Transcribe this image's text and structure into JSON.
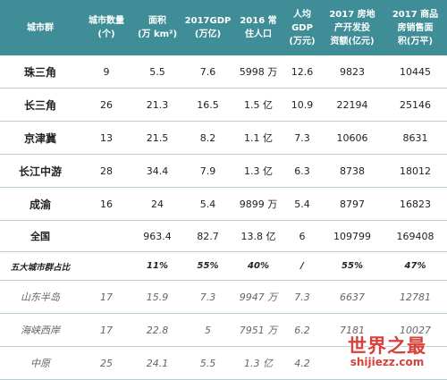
{
  "header": {
    "col1": [
      "城市群"
    ],
    "col2": [
      "城市数量",
      "(个)"
    ],
    "col3": [
      "面积",
      "(万 km²)"
    ],
    "col4": [
      "2017GDP",
      "(万亿)"
    ],
    "col5": [
      "2016 常",
      "住人口"
    ],
    "col6": [
      "人均",
      "GDP",
      "(万元)"
    ],
    "col7": [
      "2017 房地",
      "产开发投",
      "资额(亿元)"
    ],
    "col8": [
      "2017 商品",
      "房销售面",
      "积(万平)"
    ]
  },
  "rows": [
    {
      "name": "珠三角",
      "count": "9",
      "area": "5.5",
      "gdp": "7.6",
      "pop": "5998 万",
      "per": "12.6",
      "invest": "9823",
      "sales": "10445"
    },
    {
      "name": "长三角",
      "count": "26",
      "area": "21.3",
      "gdp": "16.5",
      "pop": "1.5 亿",
      "per": "10.9",
      "invest": "22194",
      "sales": "25146"
    },
    {
      "name": "京津冀",
      "count": "13",
      "area": "21.5",
      "gdp": "8.2",
      "pop": "1.1 亿",
      "per": "7.3",
      "invest": "10606",
      "sales": "8631"
    },
    {
      "name": "长江中游",
      "count": "28",
      "area": "34.4",
      "gdp": "7.9",
      "pop": "1.3 亿",
      "per": "6.3",
      "invest": "8738",
      "sales": "18012"
    },
    {
      "name": "成渝",
      "count": "16",
      "area": "24",
      "gdp": "5.4",
      "pop": "9899 万",
      "per": "5.4",
      "invest": "8797",
      "sales": "16823"
    }
  ],
  "total": {
    "name": "全国",
    "count": "",
    "area": "963.4",
    "gdp": "82.7",
    "pop": "13.8 亿",
    "per": "6",
    "invest": "109799",
    "sales": "169408"
  },
  "share": {
    "name": "五大城市群占比",
    "count": "",
    "area": "11%",
    "gdp": "55%",
    "pop": "40%",
    "per": "/",
    "invest": "55%",
    "sales": "47%"
  },
  "others": [
    {
      "name": "山东半岛",
      "count": "17",
      "area": "15.9",
      "gdp": "7.3",
      "pop": "9947 万",
      "per": "7.3",
      "invest": "6637",
      "sales": "12781"
    },
    {
      "name": "海峡西岸",
      "count": "17",
      "area": "22.8",
      "gdp": "5",
      "pop": "7951 万",
      "per": "6.2",
      "invest": "7181",
      "sales": "10027"
    },
    {
      "name": "中原",
      "count": "25",
      "area": "24.1",
      "gdp": "5.5",
      "pop": "1.3 亿",
      "per": "4.2",
      "invest": "",
      "sales": ""
    }
  ],
  "watermark": {
    "title": "世界之最",
    "url": "shijiezz.com"
  }
}
